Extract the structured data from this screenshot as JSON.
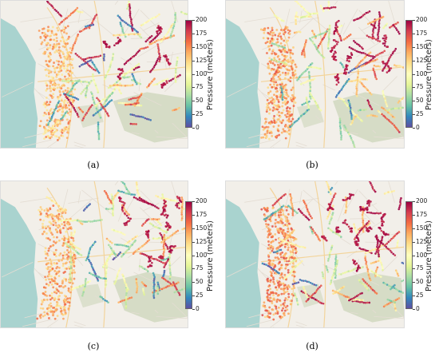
{
  "colorbar": {
    "title": "Pressure (meters)",
    "ticks": [
      "200",
      "175",
      "150",
      "125",
      "100",
      "75",
      "50",
      "25",
      "0"
    ],
    "min": 0,
    "max": 200,
    "colors": [
      "#5e4fa2",
      "#3288bd",
      "#66c2a5",
      "#abdda4",
      "#e6f598",
      "#ffffbf",
      "#fee08b",
      "#fdae61",
      "#f46d43",
      "#d53e4f",
      "#9e0142"
    ]
  },
  "basemap": {
    "land": "#f2efe9",
    "sea": "#a9d3cf",
    "park": "#d6dcc6",
    "road_minor": "#e4ddd3",
    "road_major": "#f4c97a"
  },
  "panels": [
    {
      "caption": "(a)"
    },
    {
      "caption": "(b)"
    },
    {
      "caption": "(c)"
    },
    {
      "caption": "(d)"
    }
  ]
}
